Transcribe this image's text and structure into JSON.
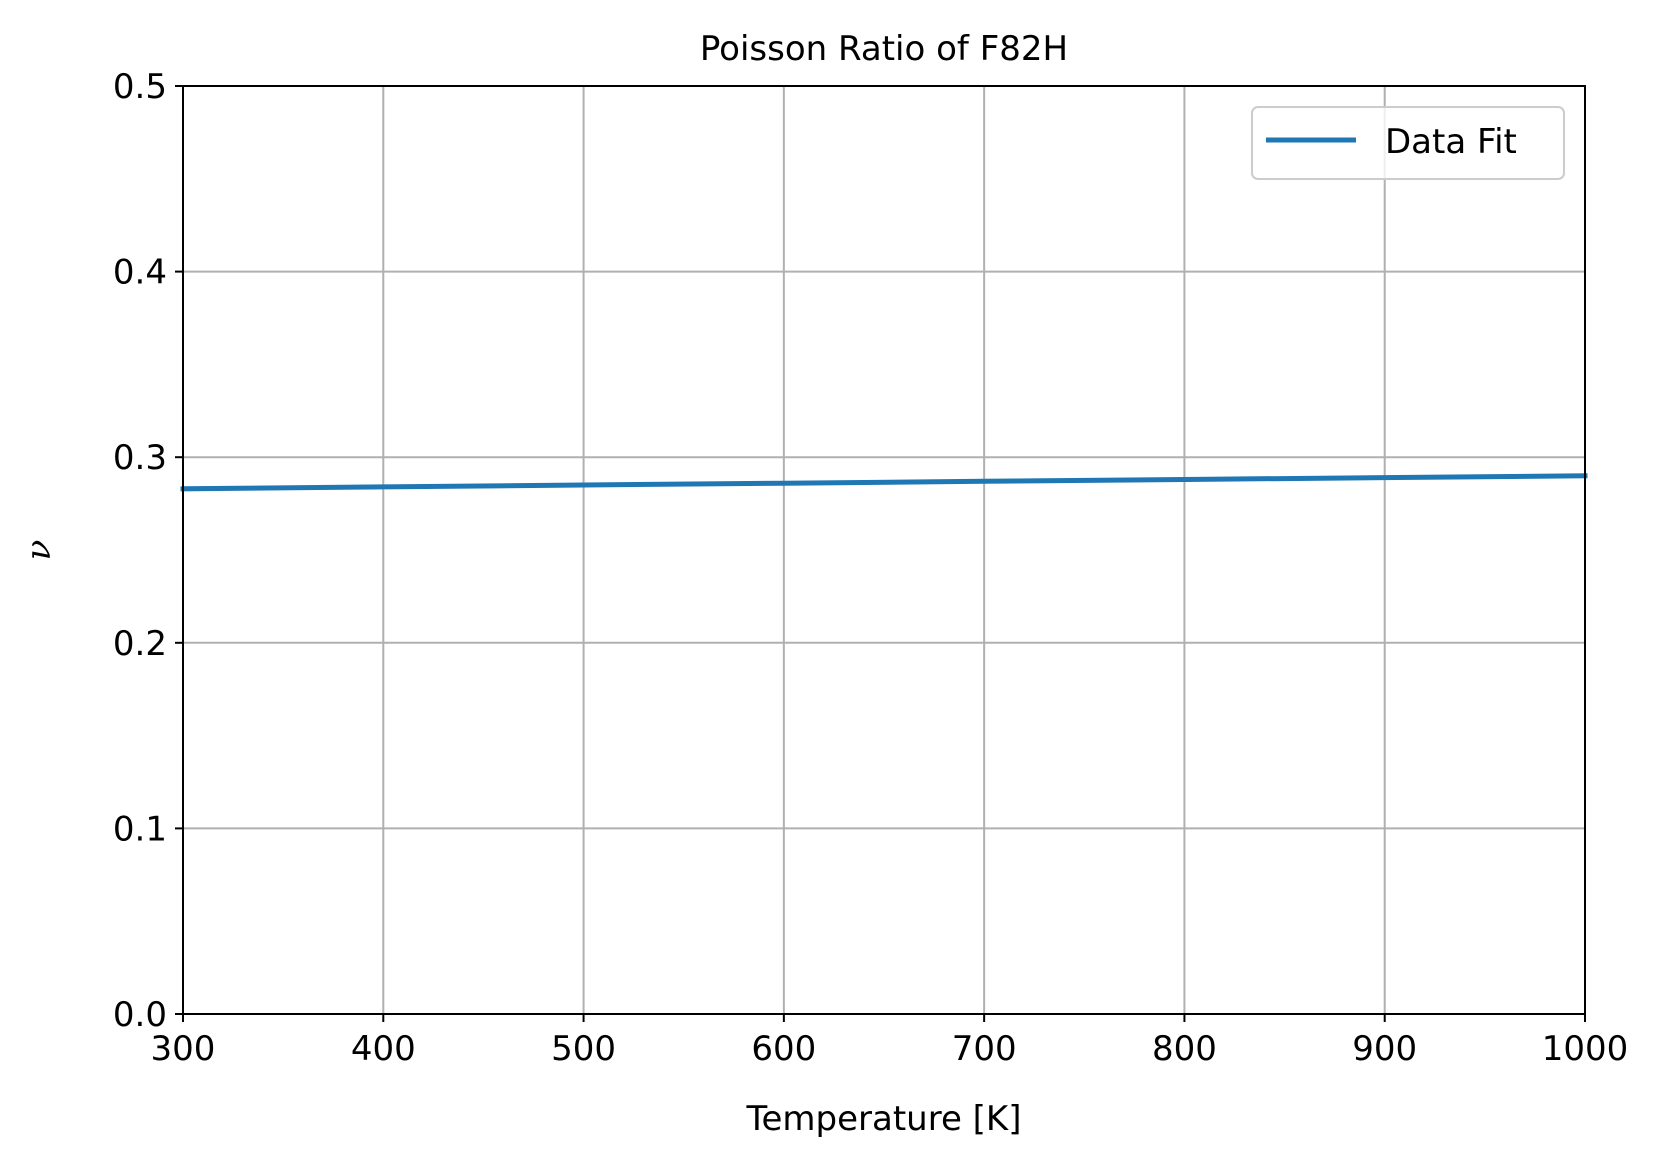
{
  "chart_data": {
    "type": "line",
    "title": "Poisson Ratio of F82H",
    "xlabel": "Temperature [K]",
    "ylabel": "ν",
    "xlim": [
      300,
      1000
    ],
    "ylim": [
      0.0,
      0.5
    ],
    "x_ticks": [
      300,
      400,
      500,
      600,
      700,
      800,
      900,
      1000
    ],
    "x_tick_labels": [
      "300",
      "400",
      "500",
      "600",
      "700",
      "800",
      "900",
      "1000"
    ],
    "y_ticks": [
      0.0,
      0.1,
      0.2,
      0.3,
      0.4,
      0.5
    ],
    "y_tick_labels": [
      "0.0",
      "0.1",
      "0.2",
      "0.3",
      "0.4",
      "0.5"
    ],
    "grid": true,
    "legend_position": "top-right",
    "series": [
      {
        "name": "Data Fit",
        "color": "#1f77b4",
        "x": [
          300,
          400,
          500,
          600,
          700,
          800,
          900,
          1000
        ],
        "y": [
          0.283,
          0.284,
          0.285,
          0.286,
          0.287,
          0.288,
          0.289,
          0.29
        ]
      }
    ]
  }
}
